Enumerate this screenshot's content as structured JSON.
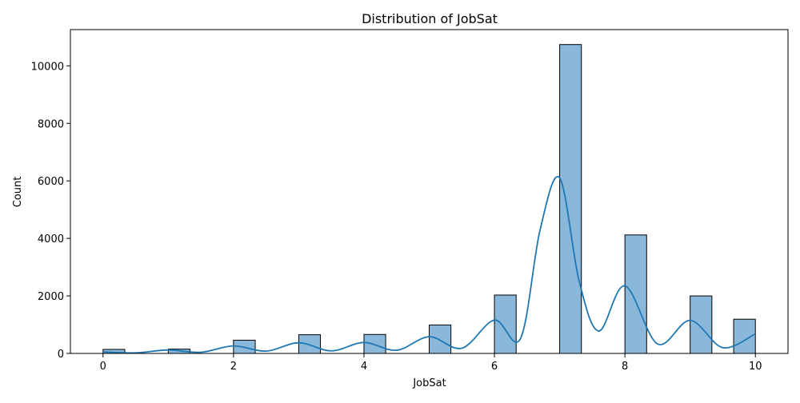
{
  "chart_data": {
    "type": "bar",
    "title": "Distribution of JobSat",
    "xlabel": "JobSat",
    "ylabel": "Count",
    "xlim": [
      -0.5,
      10.5
    ],
    "ylim": [
      0,
      11260
    ],
    "x_ticks": [
      "0",
      "2",
      "4",
      "6",
      "8",
      "10"
    ],
    "y_ticks": [
      "0",
      "2000",
      "4000",
      "6000",
      "8000",
      "10000"
    ],
    "x_tick_values": [
      0,
      2,
      4,
      6,
      8,
      10
    ],
    "y_tick_values": [
      0,
      2000,
      4000,
      6000,
      8000,
      10000
    ],
    "bins": [
      {
        "start": 0.0,
        "end": 0.333,
        "value": 140
      },
      {
        "start": 1.0,
        "end": 1.333,
        "value": 150
      },
      {
        "start": 2.0,
        "end": 2.333,
        "value": 460
      },
      {
        "start": 3.0,
        "end": 3.333,
        "value": 650
      },
      {
        "start": 4.0,
        "end": 4.333,
        "value": 660
      },
      {
        "start": 5.0,
        "end": 5.333,
        "value": 990
      },
      {
        "start": 6.0,
        "end": 6.333,
        "value": 2030
      },
      {
        "start": 7.0,
        "end": 7.333,
        "value": 10740
      },
      {
        "start": 8.0,
        "end": 8.333,
        "value": 4120
      },
      {
        "start": 9.0,
        "end": 9.333,
        "value": 2000
      },
      {
        "start": 9.667,
        "end": 10.0,
        "value": 1190
      }
    ],
    "kde": {
      "x": [
        0,
        0.5,
        1,
        1.5,
        2,
        2.5,
        3,
        3.5,
        4,
        4.5,
        5,
        5.5,
        6,
        6.4,
        6.7,
        7,
        7.3,
        7.6,
        8,
        8.5,
        9,
        9.5,
        10
      ],
      "y": [
        50,
        20,
        120,
        40,
        260,
        80,
        370,
        90,
        380,
        110,
        580,
        180,
        1160,
        520,
        4300,
        6100,
        2500,
        780,
        2350,
        330,
        1150,
        200,
        680
      ]
    },
    "bar_color": "#8ab8db",
    "bar_edge_color": "#000000",
    "kde_color": "#1f77b4",
    "grid": false,
    "legend": "none"
  }
}
